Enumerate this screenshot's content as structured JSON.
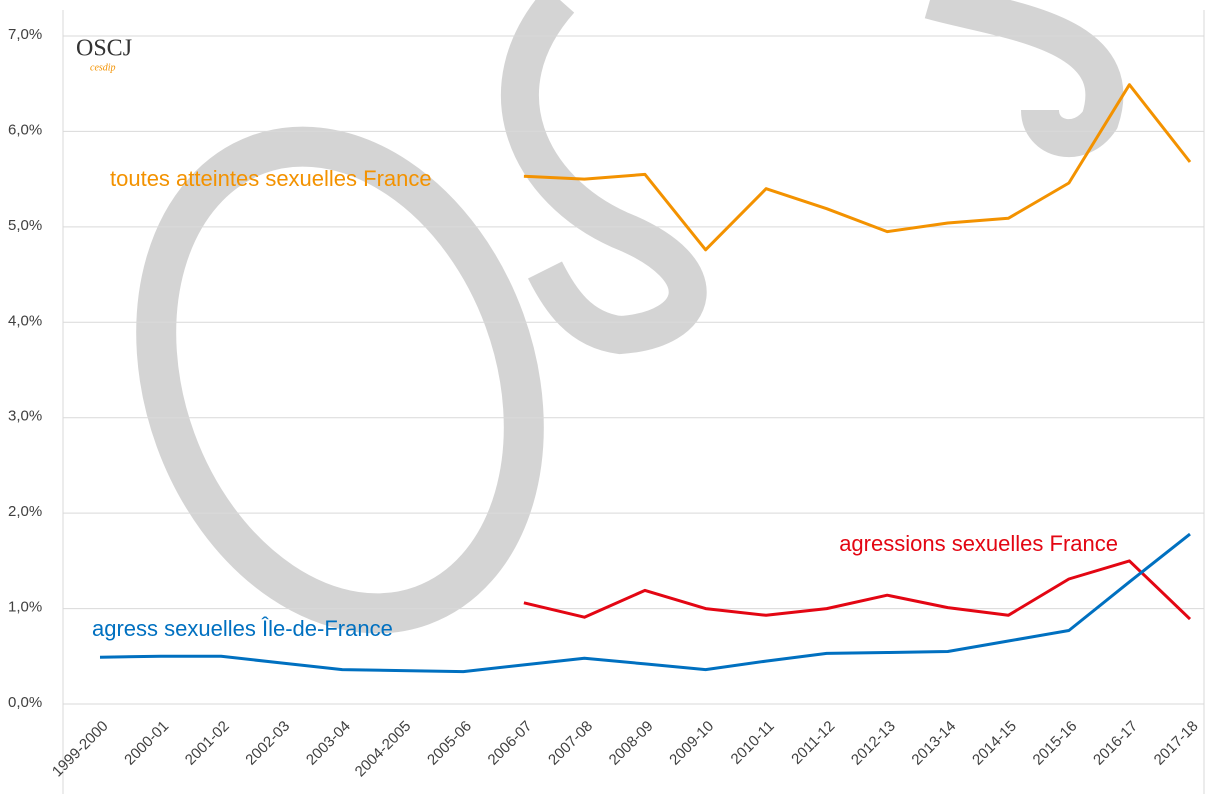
{
  "chart_data": {
    "type": "line",
    "logo": "OSCJ",
    "logo_sub": "cesdip",
    "categories": [
      "1999-2000",
      "2000-01",
      "2001-02",
      "2002-03",
      "2003-04",
      "2004-2005",
      "2005-06",
      "2006-07",
      "2007-08",
      "2008-09",
      "2009-10",
      "2010-11",
      "2011-12",
      "2012-13",
      "2013-14",
      "2014-15",
      "2015-16",
      "2016-17",
      "2017-18"
    ],
    "series": [
      {
        "name": "toutes atteintes sexuelles  France",
        "color": "#f39200",
        "values": [
          null,
          null,
          null,
          null,
          null,
          null,
          null,
          5.53,
          5.5,
          5.55,
          4.76,
          5.4,
          5.19,
          4.95,
          5.04,
          5.09,
          5.46,
          6.49,
          5.68
        ]
      },
      {
        "name": "agressions sexuelles France",
        "color": "#e30613",
        "values": [
          null,
          null,
          null,
          null,
          null,
          null,
          null,
          1.06,
          0.91,
          1.19,
          1.0,
          0.93,
          1.0,
          1.14,
          1.01,
          0.93,
          1.31,
          1.5,
          0.89
        ]
      },
      {
        "name": "agress sexuelles Île-de-France",
        "color": "#0070c0",
        "values": [
          0.49,
          0.5,
          0.5,
          0.43,
          0.36,
          0.35,
          0.34,
          0.41,
          0.48,
          0.42,
          0.36,
          0.45,
          0.53,
          0.54,
          0.55,
          0.66,
          0.77,
          1.28,
          1.78
        ]
      }
    ],
    "ylim": [
      0,
      7
    ],
    "yticks": [
      {
        "value": 0,
        "label": "0,0%"
      },
      {
        "value": 1,
        "label": "1,0%"
      },
      {
        "value": 2,
        "label": "2,0%"
      },
      {
        "value": 3,
        "label": "3,0%"
      },
      {
        "value": 4,
        "label": "4,0%"
      },
      {
        "value": 5,
        "label": "5,0%"
      },
      {
        "value": 6,
        "label": "6,0%"
      },
      {
        "value": 7,
        "label": "7,0%"
      }
    ],
    "grid": true
  }
}
